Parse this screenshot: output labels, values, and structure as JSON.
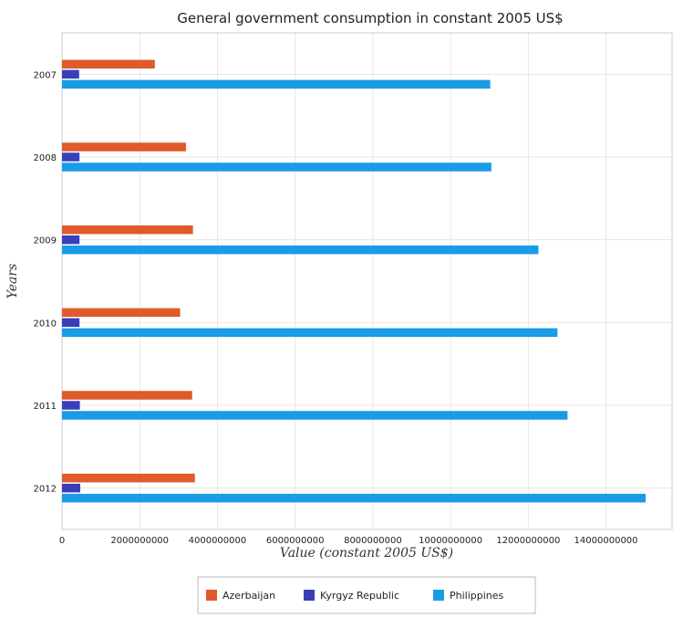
{
  "chart_data": {
    "type": "bar",
    "orientation": "horizontal",
    "title": "General government consumption in constant 2005 US$",
    "xlabel": "Value (constant 2005 US$)",
    "ylabel": "Years",
    "categories": [
      "2007",
      "2008",
      "2009",
      "2010",
      "2011",
      "2012"
    ],
    "xlim": [
      0,
      15700000000
    ],
    "xticks": [
      0,
      2000000000,
      4000000000,
      6000000000,
      8000000000,
      10000000000,
      12000000000,
      14000000000
    ],
    "xtick_labels": [
      "0",
      "2000000000",
      "4000000000",
      "6000000000",
      "8000000000",
      "10000000000",
      "12000000000",
      "14000000000"
    ],
    "grid": true,
    "legend_position": "bottom-center",
    "series": [
      {
        "name": "Azerbaijan",
        "color": "#e05a2b",
        "values": [
          2390000000,
          3190000000,
          3370000000,
          3040000000,
          3350000000,
          3420000000
        ]
      },
      {
        "name": "Kyrgyz Republic",
        "color": "#3a3fb8",
        "values": [
          440000000,
          450000000,
          450000000,
          450000000,
          460000000,
          470000000
        ]
      },
      {
        "name": "Philippines",
        "color": "#1a9be6",
        "values": [
          11020000000,
          11050000000,
          12260000000,
          12750000000,
          13010000000,
          15020000000
        ]
      }
    ]
  }
}
